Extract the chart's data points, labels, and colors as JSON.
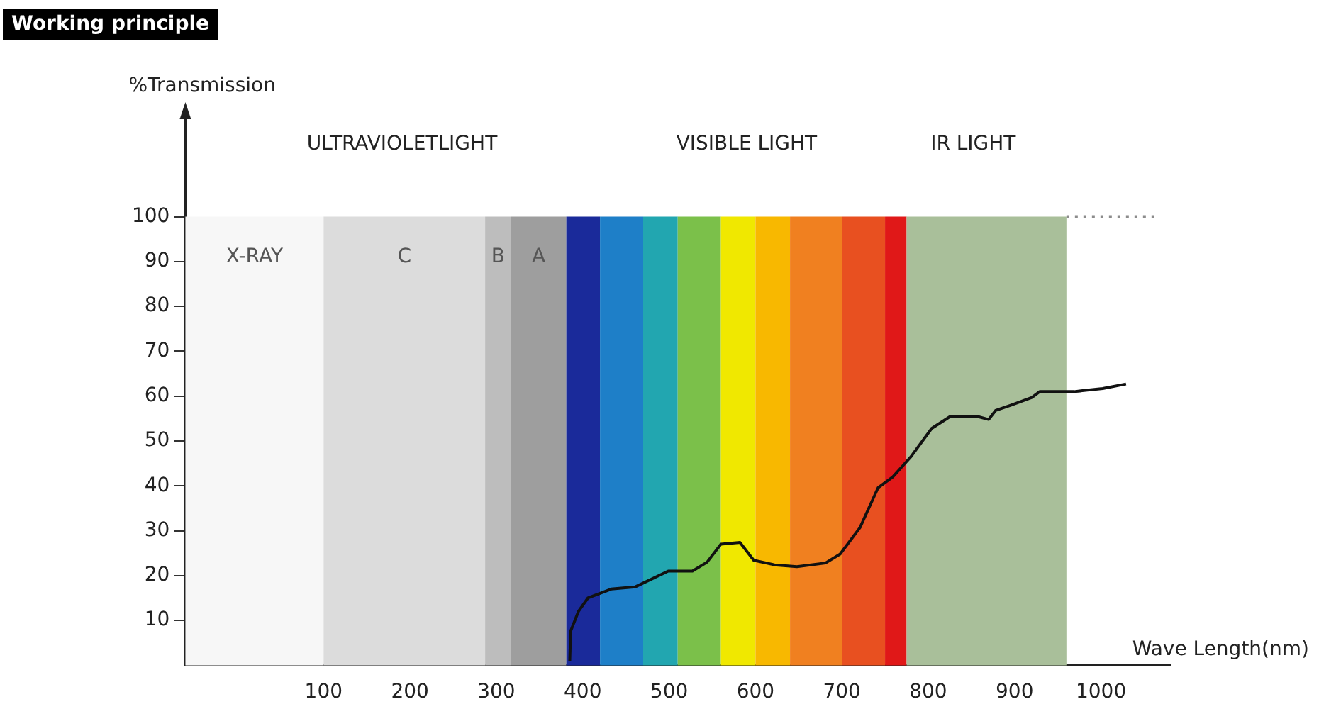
{
  "chart_data": {
    "type": "line",
    "title": "Working principle",
    "xlabel": "Wave Length(nm)",
    "ylabel": "%Transmission",
    "xlim": [
      -60,
      1080
    ],
    "xticks": [
      100,
      200,
      300,
      400,
      500,
      600,
      700,
      800,
      900,
      1000
    ],
    "ylim": [
      0,
      123
    ],
    "yticks": [
      10,
      20,
      30,
      40,
      50,
      60,
      70,
      80,
      90,
      100
    ],
    "series": [
      {
        "color": "#111111",
        "x": [
          385,
          386,
          395,
          406,
          433,
          461,
          499,
          527,
          544,
          560,
          582,
          598,
          622,
          648,
          681,
          698,
          721,
          742,
          759,
          780,
          804,
          825,
          858,
          870,
          878,
          896,
          920,
          929,
          969,
          1002,
          1029
        ],
        "values": [
          1,
          7.6,
          12,
          15,
          17,
          17.5,
          21,
          21,
          23,
          27,
          27.4,
          23.4,
          22.4,
          22,
          22.8,
          24.8,
          30.7,
          39.6,
          42,
          46.5,
          52.8,
          55.4,
          55.4,
          54.8,
          56.8,
          58,
          59.7,
          61,
          61,
          61.7,
          62.7
        ]
      },
      {
        "color": "#8c8c8c",
        "line_style": "dotted",
        "x": [
          960,
          1065
        ],
        "values": [
          100,
          100
        ]
      }
    ],
    "bands": [
      {
        "axis": "x",
        "from": -60,
        "to": 100,
        "label": "X-RAY",
        "color": "#f7f7f7"
      },
      {
        "axis": "x",
        "from": 100,
        "to": 287,
        "label": "C",
        "color": "#dcdcdc"
      },
      {
        "axis": "x",
        "from": 287,
        "to": 317,
        "label": "B",
        "color": "#bdbdbd"
      },
      {
        "axis": "x",
        "from": 317,
        "to": 381,
        "label": "A",
        "color": "#9e9e9e"
      },
      {
        "axis": "x",
        "from": 381,
        "to": 420,
        "color": "#1a2a9a"
      },
      {
        "axis": "x",
        "from": 420,
        "to": 470,
        "color": "#1e7fc8"
      },
      {
        "axis": "x",
        "from": 470,
        "to": 510,
        "color": "#22a6b0"
      },
      {
        "axis": "x",
        "from": 510,
        "to": 560,
        "color": "#7bc04a"
      },
      {
        "axis": "x",
        "from": 560,
        "to": 600,
        "color": "#f0e800"
      },
      {
        "axis": "x",
        "from": 600,
        "to": 640,
        "color": "#f8b800"
      },
      {
        "axis": "x",
        "from": 640,
        "to": 700,
        "color": "#f08020"
      },
      {
        "axis": "x",
        "from": 700,
        "to": 750,
        "color": "#e85020"
      },
      {
        "axis": "x",
        "from": 750,
        "to": 775,
        "color": "#e01818"
      },
      {
        "axis": "x",
        "from": 775,
        "to": 960,
        "color": "#a9bf9a"
      }
    ],
    "annotations": [
      "ULTRAVIOLETLIGHT",
      "VISIBLE LIGHT",
      "IR LIGHT"
    ]
  }
}
